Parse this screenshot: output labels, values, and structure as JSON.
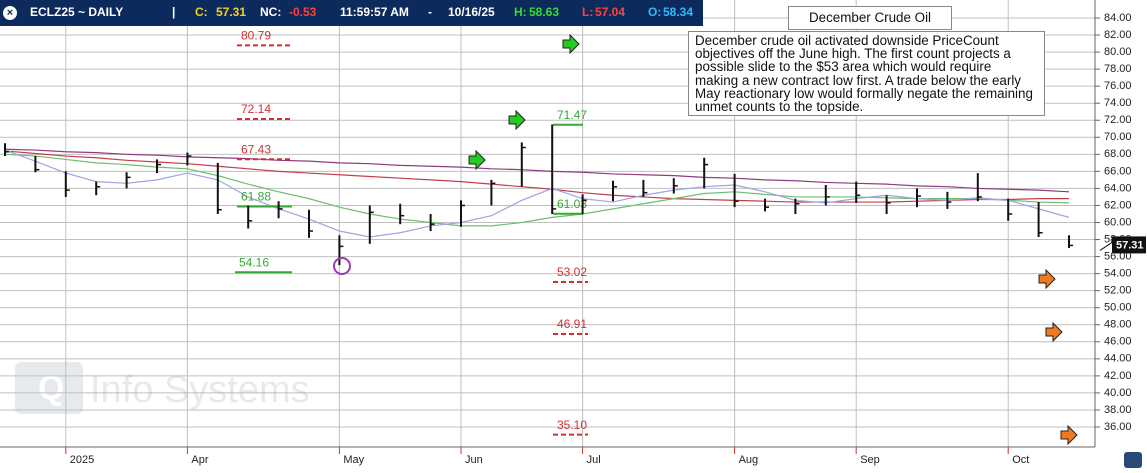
{
  "header": {
    "symbol": "ECLZ25 ~ DAILY",
    "sep": "|",
    "c_label": "C:",
    "c": 57.31,
    "nc_label": "NC:",
    "nc": -0.53,
    "time": "11:59:57 AM",
    "dash": "-",
    "date": "10/16/25",
    "h_label": "H:",
    "h": 58.63,
    "l_label": "L:",
    "l": 57.04,
    "o_label": "O:",
    "o": 58.34
  },
  "chart_data": {
    "type": "ohlc",
    "title": "December Crude Oil",
    "annotation": "December crude oil activated downside PriceCount objectives off the June high.  The first count projects a possible slide to the $53 area which would require making a new contract low first.  A trade below the early May reactionary low would formally negate the remaining unmet counts to the topside.",
    "watermark": "Info Systems",
    "categories": [
      null,
      null,
      "2025",
      null,
      null,
      null,
      "Apr",
      null,
      null,
      null,
      null,
      "May",
      null,
      null,
      null,
      "Jun",
      null,
      null,
      null,
      "Jul",
      null,
      null,
      null,
      null,
      "Aug",
      null,
      null,
      null,
      "Sep",
      null,
      null,
      null,
      null,
      "Oct",
      null,
      null
    ],
    "high": [
      69.3,
      67.8,
      66.0,
      64.8,
      65.9,
      67.4,
      68.2,
      67.0,
      62.0,
      62.5,
      61.5,
      58.5,
      62.0,
      62.2,
      61.0,
      62.6,
      65.0,
      69.4,
      71.5,
      63.3,
      64.9,
      65.0,
      65.2,
      67.6,
      65.7,
      62.8,
      62.8,
      64.4,
      64.8,
      63.2,
      64.0,
      63.6,
      65.8,
      62.8,
      62.4,
      58.5
    ],
    "low": [
      67.8,
      65.9,
      63.0,
      63.2,
      64.0,
      65.8,
      66.7,
      61.0,
      59.3,
      60.5,
      58.2,
      55.0,
      57.5,
      59.8,
      59.0,
      59.5,
      62.0,
      64.2,
      61.0,
      61.0,
      62.5,
      63.0,
      63.4,
      64.0,
      61.8,
      61.3,
      61.0,
      62.0,
      62.3,
      61.0,
      61.8,
      61.6,
      62.5,
      60.2,
      58.3,
      57.0
    ],
    "close": [
      68.3,
      66.2,
      63.8,
      64.2,
      65.3,
      66.8,
      67.8,
      61.5,
      60.2,
      61.6,
      59.0,
      57.2,
      61.2,
      60.8,
      59.8,
      62.0,
      64.6,
      68.8,
      61.6,
      62.6,
      64.2,
      63.5,
      64.3,
      66.8,
      62.5,
      61.8,
      62.2,
      63.0,
      63.2,
      62.3,
      63.1,
      62.4,
      63.0,
      61.0,
      58.8,
      57.31
    ],
    "bar_color": "#111111",
    "averages": [
      {
        "color": "#8e3b7e",
        "values": [
          68.6,
          68.5,
          68.3,
          68.2,
          68.0,
          67.9,
          67.7,
          67.6,
          67.5,
          67.3,
          67.2,
          67.0,
          66.9,
          66.7,
          66.6,
          66.5,
          66.3,
          66.2,
          66.0,
          65.9,
          65.7,
          65.6,
          65.5,
          65.3,
          65.2,
          65.0,
          64.9,
          64.7,
          64.6,
          64.5,
          64.3,
          64.2,
          64.0,
          63.9,
          63.8,
          63.6
        ]
      },
      {
        "color": "#c0404a",
        "values": [
          68.4,
          68.1,
          67.8,
          67.6,
          67.3,
          67.1,
          66.9,
          66.6,
          66.3,
          66.0,
          65.8,
          65.6,
          65.4,
          65.2,
          65.0,
          64.8,
          64.5,
          64.2,
          63.9,
          63.5,
          63.2,
          63.0,
          62.8,
          62.7,
          62.6,
          62.5,
          62.4,
          62.4,
          62.4,
          62.4,
          62.5,
          62.6,
          62.7,
          62.7,
          62.8,
          62.8
        ]
      },
      {
        "color": "#6cc06c",
        "values": [
          68.0,
          67.8,
          67.4,
          67.0,
          66.8,
          66.5,
          66.3,
          65.5,
          64.5,
          63.6,
          62.8,
          61.8,
          61.0,
          60.4,
          60.0,
          59.6,
          59.6,
          60.0,
          60.6,
          61.0,
          61.6,
          62.2,
          62.8,
          63.4,
          63.6,
          63.3,
          63.0,
          63.0,
          63.0,
          62.9,
          62.8,
          62.8,
          62.8,
          62.6,
          62.4,
          62.3
        ]
      },
      {
        "color": "#9aa6e6",
        "values": [
          68.5,
          67.2,
          65.8,
          64.8,
          64.6,
          65.0,
          65.8,
          65.0,
          63.0,
          61.6,
          60.4,
          59.0,
          58.3,
          58.8,
          59.6,
          60.0,
          60.8,
          62.6,
          64.0,
          62.8,
          62.4,
          63.2,
          63.8,
          64.2,
          64.4,
          63.6,
          62.6,
          62.3,
          62.8,
          63.2,
          62.8,
          62.6,
          62.9,
          62.6,
          61.6,
          60.6
        ]
      }
    ],
    "levels": [
      {
        "value": 80.79,
        "label": "80.79",
        "color": "#d03030"
      },
      {
        "value": 72.14,
        "label": "72.14",
        "color": "#d03030"
      },
      {
        "value": 67.43,
        "label": "67.43",
        "color": "#d03030"
      },
      {
        "value": 61.88,
        "label": "61.88",
        "color": "#33aa33"
      },
      {
        "value": 54.16,
        "label": "54.16",
        "color": "#33aa33"
      },
      {
        "value": 71.47,
        "label": "71.47",
        "color": "#33aa33"
      },
      {
        "value": 61.03,
        "label": "61.03",
        "color": "#33aa33"
      },
      {
        "value": 53.02,
        "label": "53.02",
        "color": "#d03030"
      },
      {
        "value": 46.91,
        "label": "46.91",
        "color": "#d03030"
      },
      {
        "value": 35.1,
        "label": "35.10",
        "color": "#d03030"
      }
    ],
    "last_price": 57.31,
    "ylim": [
      36,
      84
    ],
    "yticks": [
      {
        "value": 36,
        "label": "36.00"
      },
      {
        "value": 38,
        "label": "38.00"
      },
      {
        "value": 40,
        "label": "40.00"
      },
      {
        "value": 42,
        "label": "42.00"
      },
      {
        "value": 44,
        "label": "44.00"
      },
      {
        "value": 46,
        "label": "46.00"
      },
      {
        "value": 48,
        "label": "48.00"
      },
      {
        "value": 50,
        "label": "50.00"
      },
      {
        "value": 52,
        "label": "52.00"
      },
      {
        "value": 54,
        "label": "54.00"
      },
      {
        "value": 56,
        "label": "56.00"
      },
      {
        "value": 58,
        "label": "58.00"
      },
      {
        "value": 60,
        "label": "60.00"
      },
      {
        "value": 62,
        "label": "62.00"
      },
      {
        "value": 64,
        "label": "64.00"
      },
      {
        "value": 66,
        "label": "66.00"
      },
      {
        "value": 68,
        "label": "68.00"
      },
      {
        "value": 70,
        "label": "70.00"
      },
      {
        "value": 72,
        "label": "72.00"
      },
      {
        "value": 74,
        "label": "74.00"
      },
      {
        "value": 76,
        "label": "76.00"
      },
      {
        "value": 78,
        "label": "78.00"
      },
      {
        "value": 80,
        "label": "80.00"
      },
      {
        "value": 82,
        "label": "82.00"
      },
      {
        "value": 84,
        "label": "84.00"
      }
    ],
    "grid": true
  }
}
